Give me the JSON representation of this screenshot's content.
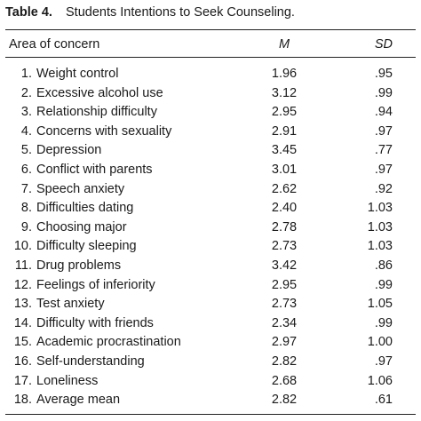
{
  "title": {
    "label": "Table 4.",
    "text": "Students Intentions to Seek Counseling."
  },
  "table": {
    "columns": [
      "Area of concern",
      "M",
      "SD"
    ],
    "rows": [
      [
        "1.",
        "Weight control",
        "1.96",
        ".95"
      ],
      [
        "2.",
        "Excessive alcohol use",
        "3.12",
        ".99"
      ],
      [
        "3.",
        "Relationship difficulty",
        "2.95",
        ".94"
      ],
      [
        "4.",
        "Concerns with sexuality",
        "2.91",
        ".97"
      ],
      [
        "5.",
        "Depression",
        "3.45",
        ".77"
      ],
      [
        "6.",
        "Conflict with parents",
        "3.01",
        ".97"
      ],
      [
        "7.",
        "Speech anxiety",
        "2.62",
        ".92"
      ],
      [
        "8.",
        "Difficulties dating",
        "2.40",
        "1.03"
      ],
      [
        "9.",
        "Choosing major",
        "2.78",
        "1.03"
      ],
      [
        "10.",
        "Difficulty sleeping",
        "2.73",
        "1.03"
      ],
      [
        "11.",
        "Drug problems",
        "3.42",
        ".86"
      ],
      [
        "12.",
        "Feelings of inferiority",
        "2.95",
        ".99"
      ],
      [
        "13.",
        "Test anxiety",
        "2.73",
        "1.05"
      ],
      [
        "14.",
        "Difficulty with friends",
        "2.34",
        ".99"
      ],
      [
        "15.",
        "Academic procrastination",
        "2.97",
        "1.00"
      ],
      [
        "16.",
        "Self-understanding",
        "2.82",
        ".97"
      ],
      [
        "17.",
        "Loneliness",
        "2.68",
        "1.06"
      ],
      [
        "18.",
        "Average mean",
        "2.82",
        ".61"
      ]
    ]
  }
}
